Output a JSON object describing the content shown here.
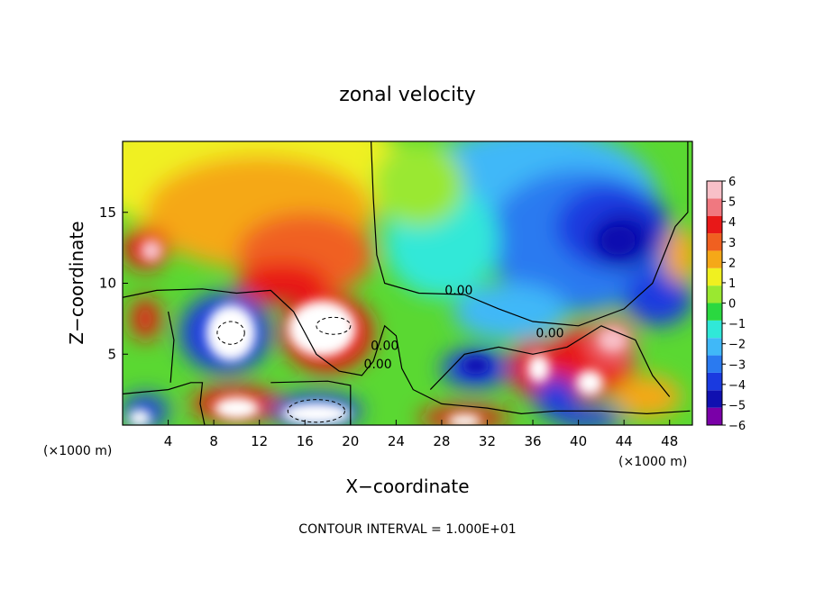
{
  "chart_data": {
    "type": "heatmap",
    "title": "zonal velocity",
    "xlabel": "X−coordinate",
    "ylabel": "Z−coordinate",
    "x_unit_left": "(×1000 m)",
    "x_unit_right": "(×1000 m)",
    "footer": "CONTOUR INTERVAL = 1.000E+01",
    "xlim": [
      0,
      50
    ],
    "ylim": [
      0,
      20
    ],
    "x_ticks": [
      "4",
      "8",
      "12",
      "16",
      "20",
      "24",
      "28",
      "32",
      "36",
      "40",
      "44",
      "48"
    ],
    "y_ticks": [
      "5",
      "10",
      "15"
    ],
    "colorbar": {
      "range": [
        -6,
        6
      ],
      "tick_labels": [
        "6",
        "5",
        "4",
        "3",
        "2",
        "1",
        "0",
        "−1",
        "−2",
        "−3",
        "−4",
        "−5",
        "−6"
      ],
      "stops": [
        "#7a00a8",
        "#1010b0",
        "#1a3ae0",
        "#2a7af0",
        "#40b8f8",
        "#30e8d8",
        "#2ad840",
        "#9ae830",
        "#f0f020",
        "#f5a818",
        "#f06020",
        "#e81818",
        "#f07880",
        "#f8c0c8"
      ]
    },
    "contour_labels": [
      {
        "text": "0.00",
        "x": 29.5,
        "z": 9.2
      },
      {
        "text": "0.00",
        "x": 37.5,
        "z": 6.2
      },
      {
        "text": "0.00",
        "x": 23.0,
        "z": 5.3
      },
      {
        "text": "0.00",
        "x": 22.4,
        "z": 4.0
      }
    ]
  }
}
